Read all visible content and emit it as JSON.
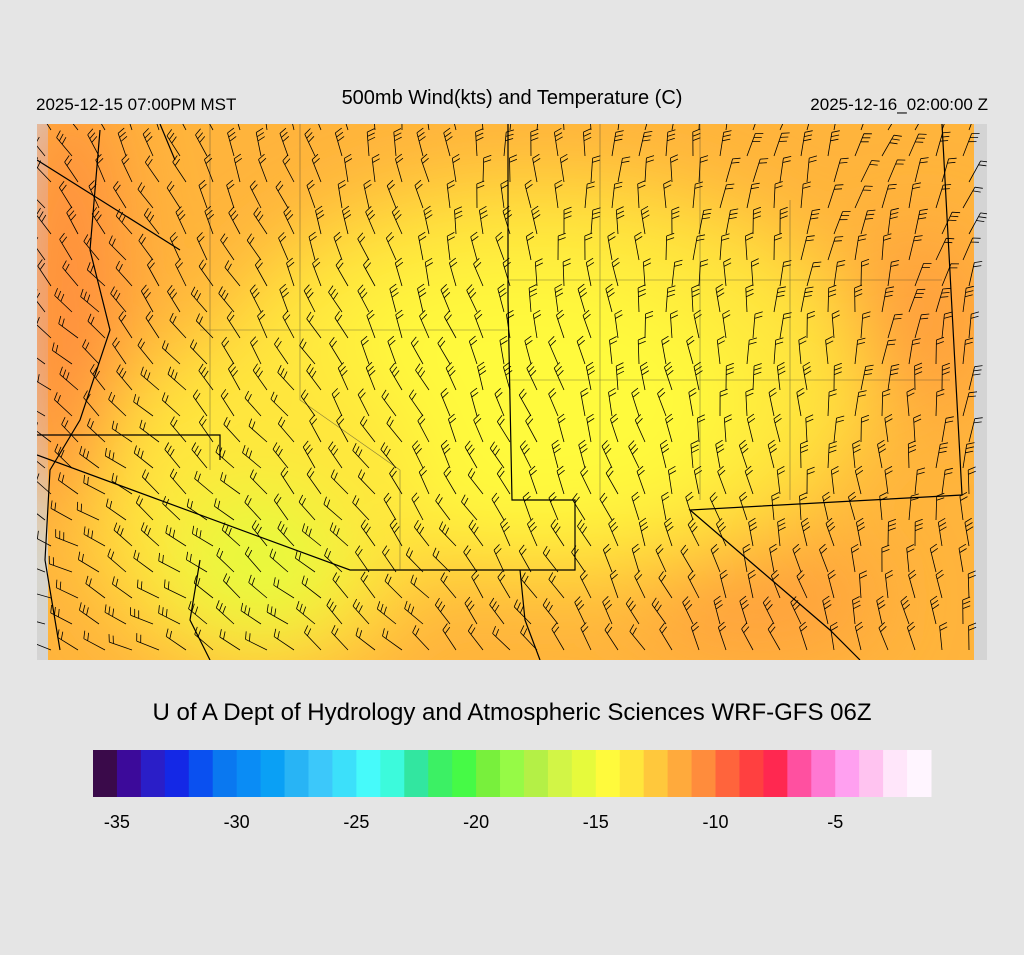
{
  "header": {
    "left": "2025-12-15 07:00PM MST",
    "title": "500mb Wind(kts) and Temperature (C)",
    "right": "2025-12-16_02:00:00 Z"
  },
  "footer": {
    "credit": "U of A Dept of Hydrology and Atmospheric Sciences WRF-GFS 06Z"
  },
  "colorbar": {
    "range": [
      -36,
      -1
    ],
    "ticks": [
      -35,
      -30,
      -25,
      -20,
      -15,
      -10,
      -5
    ],
    "colors": [
      "#3a0a4a",
      "#3c0a9a",
      "#2a1ec8",
      "#1428e6",
      "#0a50f0",
      "#0a78f0",
      "#0a8cf5",
      "#0aa0f5",
      "#28b4f5",
      "#3cc8fa",
      "#3ce0fa",
      "#46fafa",
      "#3cfadc",
      "#32e6a0",
      "#3cf064",
      "#46fa46",
      "#78f03c",
      "#96fa46",
      "#b4f046",
      "#d2f546",
      "#e6fa3c",
      "#fffa3c",
      "#ffe63c",
      "#ffc83c",
      "#ffaa3c",
      "#ff8c3c",
      "#ff643c",
      "#ff4040",
      "#ff2850",
      "#ff50a0",
      "#ff78d2",
      "#ffa0f0",
      "#ffc3f0",
      "#ffe6fa",
      "#fff5ff"
    ]
  }
}
